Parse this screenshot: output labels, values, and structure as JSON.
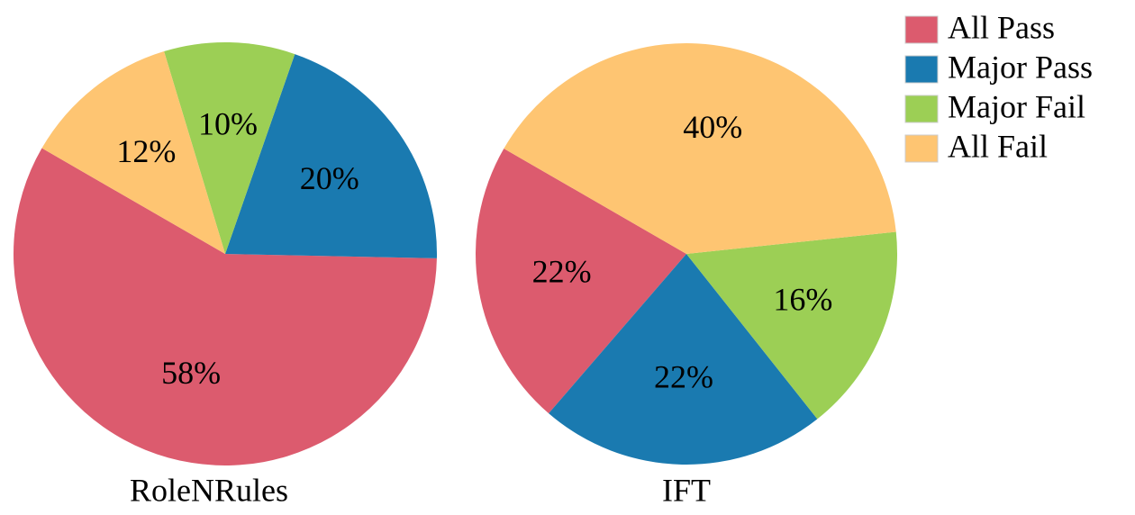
{
  "chart_data": [
    {
      "type": "pie",
      "title": "RoleNRules",
      "categories": [
        "All Pass",
        "Major Pass",
        "Major Fail",
        "All Fail"
      ],
      "values": [
        58,
        20,
        10,
        12
      ],
      "value_labels": [
        "58%",
        "20%",
        "10%",
        "12%"
      ],
      "colors": [
        "#dc5b6e",
        "#1a7ab0",
        "#9ccf55",
        "#fec572"
      ],
      "startangle": 150,
      "counterclock": true,
      "legend": "upper right"
    },
    {
      "type": "pie",
      "title": "IFT",
      "categories": [
        "All Pass",
        "Major Pass",
        "Major Fail",
        "All Fail"
      ],
      "values": [
        22,
        22,
        16,
        40
      ],
      "value_labels": [
        "22%",
        "22%",
        "16%",
        "40%"
      ],
      "colors": [
        "#dc5b6e",
        "#1a7ab0",
        "#9ccf55",
        "#fec572"
      ],
      "startangle": 150,
      "counterclock": true
    }
  ]
}
